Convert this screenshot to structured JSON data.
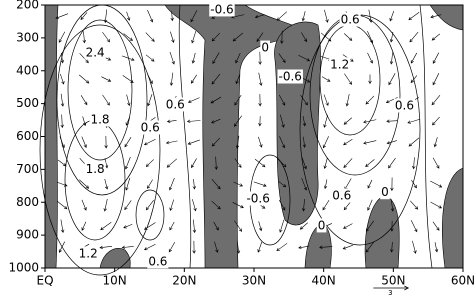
{
  "chart_data": {
    "type": "contour",
    "xlim": [
      0,
      60
    ],
    "ylim": [
      1000,
      200
    ],
    "xticks": [
      {
        "value": 0,
        "label": "EQ"
      },
      {
        "value": 10,
        "label": "10N"
      },
      {
        "value": 20,
        "label": "20N"
      },
      {
        "value": 30,
        "label": "30N"
      },
      {
        "value": 40,
        "label": "40N"
      },
      {
        "value": 50,
        "label": "50N"
      },
      {
        "value": 60,
        "label": "60N"
      }
    ],
    "yticks": [
      200,
      300,
      400,
      500,
      600,
      700,
      800,
      900,
      1000
    ],
    "contour_labels": [
      {
        "level": -0.6,
        "lat": 25.4,
        "p": 215
      },
      {
        "level": 0.6,
        "lat": 43.8,
        "p": 246
      },
      {
        "level": 0,
        "lat": 31.6,
        "p": 331
      },
      {
        "level": -0.6,
        "lat": 35.2,
        "p": 419
      },
      {
        "level": 1.2,
        "lat": 42.3,
        "p": 382
      },
      {
        "level": 2.4,
        "lat": 7.2,
        "p": 346
      },
      {
        "level": 0.6,
        "lat": 51.6,
        "p": 507
      },
      {
        "level": 0.6,
        "lat": 18.7,
        "p": 504
      },
      {
        "level": 1.8,
        "lat": 7.9,
        "p": 550
      },
      {
        "level": 0.6,
        "lat": 15.1,
        "p": 574
      },
      {
        "level": 1.8,
        "lat": 7.2,
        "p": 701
      },
      {
        "level": -0.6,
        "lat": 30.6,
        "p": 790
      },
      {
        "level": 0.6,
        "lat": 42.6,
        "p": 781
      },
      {
        "level": 0,
        "lat": 48.8,
        "p": 771
      },
      {
        "level": 0,
        "lat": 39.7,
        "p": 872
      },
      {
        "level": 1.2,
        "lat": 6.2,
        "p": 957
      },
      {
        "level": 0.6,
        "lat": 16.2,
        "p": 981
      }
    ],
    "vector_reference": {
      "value": 3
    }
  }
}
